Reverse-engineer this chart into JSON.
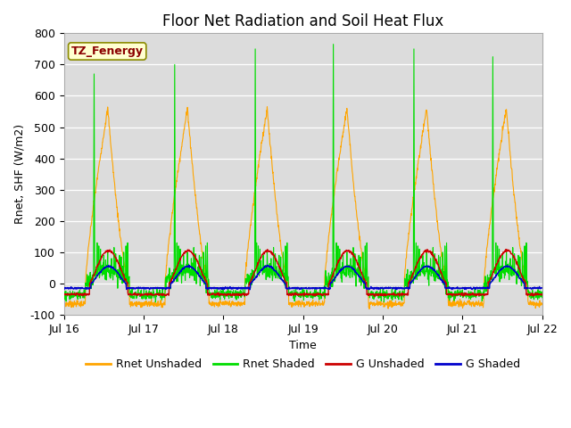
{
  "title": "Floor Net Radiation and Soil Heat Flux",
  "xlabel": "Time",
  "ylabel": "Rnet, SHF (W/m2)",
  "ylim": [
    -100,
    800
  ],
  "yticks": [
    -100,
    0,
    100,
    200,
    300,
    400,
    500,
    600,
    700,
    800
  ],
  "xlim_days": [
    0,
    6
  ],
  "x_tick_labels": [
    "Jul 16",
    "Jul 17",
    "Jul 18",
    "Jul 19",
    "Jul 20",
    "Jul 21",
    "Jul 22"
  ],
  "x_tick_positions": [
    0,
    1,
    2,
    3,
    4,
    5,
    6
  ],
  "color_rnet_unshaded": "#FFA500",
  "color_rnet_shaded": "#00DD00",
  "color_g_unshaded": "#CC0000",
  "color_g_shaded": "#0000CC",
  "label_rnet_unshaded": "Rnet Unshaded",
  "label_rnet_shaded": "Rnet Shaded",
  "label_g_unshaded": "G Unshaded",
  "label_g_shaded": "G Shaded",
  "annotation_text": "TZ_Fenergy",
  "annotation_color": "#8B0000",
  "annotation_bg": "#FFFFD0",
  "annotation_border": "#8B8B00",
  "plot_bg_color": "#DCDCDC",
  "title_fontsize": 12,
  "axis_fontsize": 9,
  "legend_fontsize": 9,
  "linewidth_main": 0.8,
  "linewidth_g": 1.0
}
